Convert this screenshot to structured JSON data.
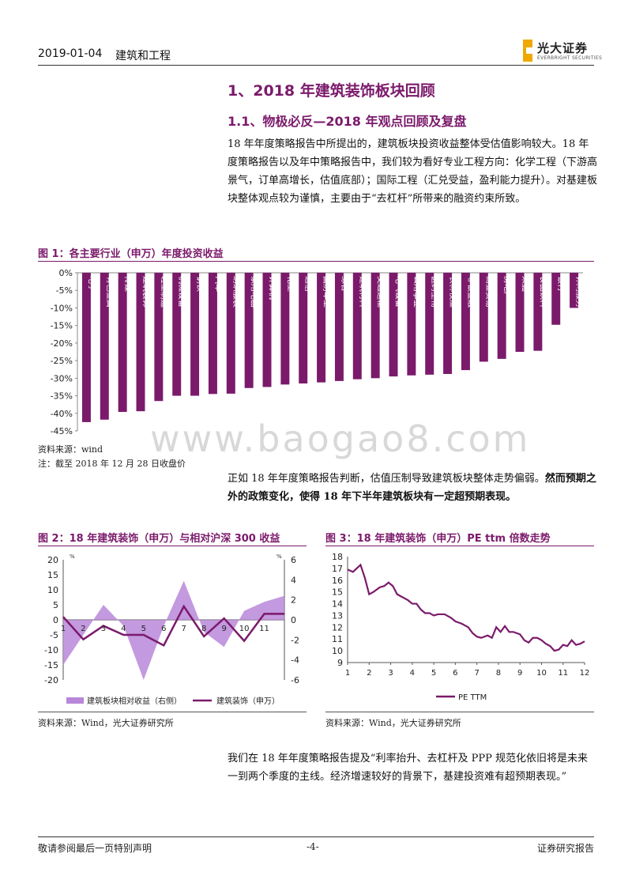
{
  "header": {
    "date": "2019-01-04",
    "sector": "建筑和工程"
  },
  "logo": {
    "name_cn": "光大证券",
    "name_en": "EVERBRIGHT SECURITIES"
  },
  "section": {
    "h1": "1、2018 年建筑装饰板块回顾",
    "h2": "1.1、物极必反—2018 年观点回顾及复盘"
  },
  "paragraphs": {
    "p1": "18 年年度策略报告中所提出的，建筑板块投资收益整体受估值影响较大。18 年度策略报告以及年中策略报告中，我们较为看好专业工程方向：化学工程（下游高景气，订单高增长，估值底部）；国际工程（汇兑受益，盈利能力提升）。对基建板块整体观点较为谨慎，主要由于“去杠杆”所带来的融资约束所致。",
    "p2_normal": "正如 18 年年度策略报告判断，估值压制导致建筑板块整体走势偏弱。",
    "p2_bold": "然而预期之外的政策变化，使得 18 年下半年建筑板块有一定超预期表现。",
    "p3": "我们在 18 年年度策略报告提及“利率抬升、去杠杆及 PPP 规范化依旧将是未来一到两个季度的主线。经济增速较好的背景下，基建投资难有超预期表现。”"
  },
  "figure1": {
    "title": "图 1：各主要行业（申万）年度投资收益",
    "source": "资料来源：wind",
    "note": "注：截至 2018 年 12 月 28 日收盘价"
  },
  "figure2": {
    "title": "图 2：18 年建筑装饰（申万）与相对沪深 300 收益",
    "source": "资料来源：Wind，光大证券研究所"
  },
  "figure3": {
    "title": "图 3：18 年建筑装饰（申万）PE ttm 倍数走势",
    "source": "资料来源：Wind，光大证券研究所"
  },
  "watermark": "www.baogao8.com",
  "footer": {
    "left": "敬请参阅最后一页特别声明",
    "page": "-4-",
    "right": "证券研究报告"
  },
  "chart_data": [
    {
      "type": "bar",
      "categories": [
        "电子",
        "有色金属",
        "传媒",
        "建筑装饰",
        "轻工制造",
        "机械设备",
        "钢铁",
        "汽车",
        "纺织服装",
        "家用电器",
        "计算机",
        "化工",
        "通信",
        "国防军工",
        "综合",
        "建筑材料",
        "交通运输",
        "电气设备",
        "公用事业",
        "医药生物",
        "农林牧渔",
        "非银金融",
        "商业贸易",
        "房地产",
        "采掘",
        "食品饮料",
        "银行",
        "休闲服务"
      ],
      "values": [
        -42.5,
        -41.8,
        -39.6,
        -39.4,
        -36.5,
        -35.0,
        -35.0,
        -34.5,
        -34.4,
        -32.8,
        -32.5,
        -31.8,
        -31.5,
        -31.2,
        -30.8,
        -30.3,
        -30.0,
        -29.5,
        -29.2,
        -29.0,
        -28.8,
        -27.7,
        -25.3,
        -24.5,
        -22.5,
        -22.2,
        -14.8,
        -10.0
      ],
      "ylim": [
        -45,
        0
      ],
      "yticks": [
        "0%",
        "-5%",
        "-10%",
        "-15%",
        "-20%",
        "-25%",
        "-30%",
        "-35%",
        "-40%",
        "-45%"
      ],
      "color": "#7b1a6b"
    },
    {
      "type": "line",
      "x": [
        1,
        2,
        3,
        4,
        5,
        6,
        7,
        8,
        9,
        10,
        11,
        12
      ],
      "xticks": [
        "1",
        "2",
        "3",
        "4",
        "5",
        "6",
        "7",
        "8",
        "9",
        "10",
        "11"
      ],
      "left_ylim": [
        -20,
        20
      ],
      "left_yticks": [
        "20",
        "15",
        "10",
        "5",
        "0",
        "-5",
        "-10",
        "-15",
        "-20"
      ],
      "right_ylim": [
        -6,
        6
      ],
      "right_yticks": [
        "6",
        "4",
        "2",
        "0",
        "-2",
        "-4",
        "-6"
      ],
      "left_unit": "%",
      "right_unit": "%",
      "series": [
        {
          "name": "建筑板块相对收益（右侧）",
          "kind": "area",
          "axis": "left",
          "color": "#b987d9",
          "values": [
            -15,
            -5,
            5,
            -2,
            -20,
            -2,
            13,
            -4,
            -9,
            3,
            6,
            8
          ]
        },
        {
          "name": "建筑装饰（申万）",
          "kind": "line",
          "axis": "left",
          "color": "#7b1a6b",
          "values": [
            1,
            -6.5,
            -2,
            -5,
            -5,
            -8.5,
            4.5,
            -5.5,
            0.5,
            -7,
            2,
            2
          ]
        }
      ]
    },
    {
      "type": "line",
      "x_range": [
        1,
        12
      ],
      "xticks": [
        "1",
        "2",
        "3",
        "4",
        "5",
        "6",
        "7",
        "8",
        "9",
        "10",
        "11",
        "12"
      ],
      "ylim": [
        9,
        18
      ],
      "yticks": [
        "18",
        "17",
        "16",
        "15",
        "14",
        "13",
        "12",
        "11",
        "10",
        "9"
      ],
      "series": [
        {
          "name": "PE TTM",
          "color": "#7b1a6b",
          "points": [
            [
              1,
              16.9
            ],
            [
              1.25,
              16.7
            ],
            [
              1.6,
              17.3
            ],
            [
              1.8,
              16.2
            ],
            [
              2,
              14.8
            ],
            [
              2.2,
              15.0
            ],
            [
              2.5,
              15.4
            ],
            [
              2.7,
              15.5
            ],
            [
              2.9,
              15.8
            ],
            [
              3.1,
              15.5
            ],
            [
              3.3,
              14.8
            ],
            [
              3.5,
              14.6
            ],
            [
              3.8,
              14.3
            ],
            [
              4,
              14.0
            ],
            [
              4.2,
              14.0
            ],
            [
              4.4,
              13.5
            ],
            [
              4.6,
              13.2
            ],
            [
              4.8,
              13.2
            ],
            [
              5,
              13.0
            ],
            [
              5.2,
              13.1
            ],
            [
              5.5,
              13.1
            ],
            [
              5.8,
              12.8
            ],
            [
              6,
              12.5
            ],
            [
              6.3,
              12.3
            ],
            [
              6.6,
              12.0
            ],
            [
              6.8,
              11.5
            ],
            [
              7,
              11.2
            ],
            [
              7.2,
              11.1
            ],
            [
              7.5,
              11.3
            ],
            [
              7.7,
              11.1
            ],
            [
              7.9,
              12.0
            ],
            [
              8.1,
              11.6
            ],
            [
              8.3,
              12.1
            ],
            [
              8.5,
              11.6
            ],
            [
              8.7,
              11.6
            ],
            [
              9,
              11.4
            ],
            [
              9.2,
              10.9
            ],
            [
              9.4,
              10.7
            ],
            [
              9.6,
              11.1
            ],
            [
              9.8,
              11.1
            ],
            [
              10,
              10.9
            ],
            [
              10.2,
              10.6
            ],
            [
              10.4,
              10.4
            ],
            [
              10.6,
              10.0
            ],
            [
              10.8,
              10.1
            ],
            [
              11,
              10.5
            ],
            [
              11.2,
              10.4
            ],
            [
              11.4,
              10.9
            ],
            [
              11.6,
              10.5
            ],
            [
              11.8,
              10.6
            ],
            [
              12,
              10.8
            ]
          ]
        }
      ]
    }
  ]
}
